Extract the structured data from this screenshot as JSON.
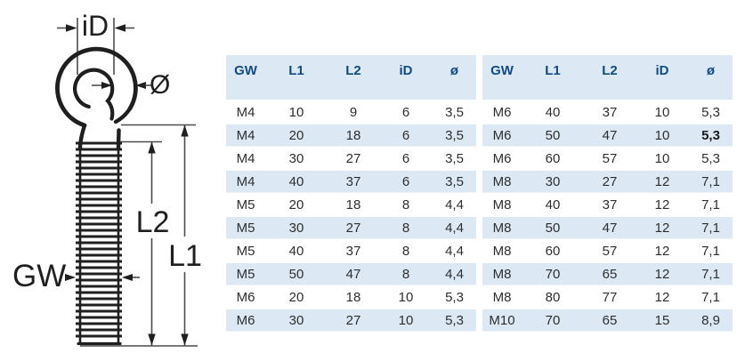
{
  "diagram": {
    "description": "eye bolt technical drawing",
    "labels": {
      "inner_diameter": "iD",
      "wire_diameter": "Ø",
      "thread": "GW",
      "length_l2": "L2",
      "length_l1": "L1"
    }
  },
  "table": {
    "headers": [
      "GW",
      "L1",
      "L2",
      "iD",
      "ø"
    ],
    "halves": [
      {
        "rows": [
          [
            "M4",
            "10",
            "9",
            "6",
            "3,5"
          ],
          [
            "M4",
            "20",
            "18",
            "6",
            "3,5"
          ],
          [
            "M4",
            "30",
            "27",
            "6",
            "3,5"
          ],
          [
            "M4",
            "40",
            "37",
            "6",
            "3,5"
          ],
          [
            "M5",
            "20",
            "18",
            "8",
            "4,4"
          ],
          [
            "M5",
            "30",
            "27",
            "8",
            "4,4"
          ],
          [
            "M5",
            "40",
            "37",
            "8",
            "4,4"
          ],
          [
            "M5",
            "50",
            "47",
            "8",
            "4,4"
          ],
          [
            "M6",
            "20",
            "18",
            "10",
            "5,3"
          ],
          [
            "M6",
            "30",
            "27",
            "10",
            "5,3"
          ]
        ]
      },
      {
        "rows": [
          [
            "M6",
            "40",
            "37",
            "10",
            "5,3"
          ],
          [
            "M6",
            "50",
            "47",
            "10",
            "5,3"
          ],
          [
            "M6",
            "60",
            "57",
            "10",
            "5,3"
          ],
          [
            "M8",
            "30",
            "27",
            "12",
            "7,1"
          ],
          [
            "M8",
            "40",
            "37",
            "12",
            "7,1"
          ],
          [
            "M8",
            "50",
            "47",
            "12",
            "7,1"
          ],
          [
            "M8",
            "60",
            "57",
            "12",
            "7,1"
          ],
          [
            "M8",
            "70",
            "65",
            "12",
            "7,1"
          ],
          [
            "M8",
            "80",
            "77",
            "12",
            "7,1"
          ],
          [
            "M10",
            "70",
            "65",
            "15",
            "8,9"
          ]
        ]
      }
    ],
    "bold_cell": {
      "half": 1,
      "row": 1,
      "col": 4
    }
  },
  "colors": {
    "stripe_bg": "#dce8f4",
    "header_text": "#0f4a85",
    "value_text": "#2e2e2e",
    "line_color": "#1f1f1f"
  }
}
